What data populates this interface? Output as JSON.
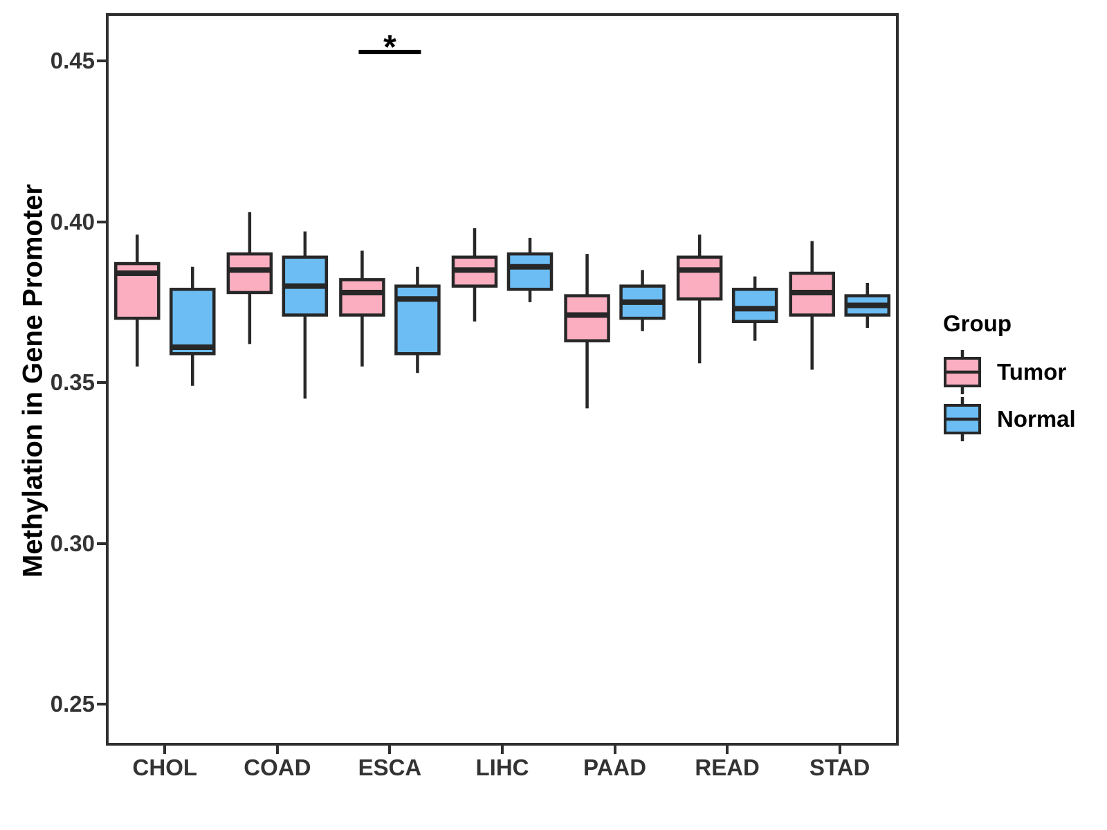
{
  "chart_data": {
    "type": "boxplot",
    "title": "",
    "xlabel": "",
    "ylabel": "Methylation in Gene Promoter",
    "legend_title": "Group",
    "legend_position": "right",
    "grid": false,
    "categories": [
      "CHOL",
      "COAD",
      "ESCA",
      "LIHC",
      "PAAD",
      "READ",
      "STAD"
    ],
    "ylim": [
      0.238,
      0.464
    ],
    "yticks": [
      {
        "value": 0.25,
        "label": "0.25"
      },
      {
        "value": 0.3,
        "label": "0.30"
      },
      {
        "value": 0.35,
        "label": "0.35"
      },
      {
        "value": 0.4,
        "label": "0.40"
      },
      {
        "value": 0.45,
        "label": "0.45"
      }
    ],
    "series": [
      {
        "name": "Tumor",
        "color": "#FAAEC0",
        "boxes": [
          {
            "category": "CHOL",
            "whisker_low": 0.355,
            "q1": 0.37,
            "median": 0.384,
            "q3": 0.387,
            "whisker_high": 0.396
          },
          {
            "category": "COAD",
            "whisker_low": 0.362,
            "q1": 0.378,
            "median": 0.385,
            "q3": 0.39,
            "whisker_high": 0.403
          },
          {
            "category": "ESCA",
            "whisker_low": 0.355,
            "q1": 0.371,
            "median": 0.378,
            "q3": 0.382,
            "whisker_high": 0.391
          },
          {
            "category": "LIHC",
            "whisker_low": 0.369,
            "q1": 0.38,
            "median": 0.385,
            "q3": 0.389,
            "whisker_high": 0.398
          },
          {
            "category": "PAAD",
            "whisker_low": 0.342,
            "q1": 0.363,
            "median": 0.371,
            "q3": 0.377,
            "whisker_high": 0.39
          },
          {
            "category": "READ",
            "whisker_low": 0.356,
            "q1": 0.376,
            "median": 0.385,
            "q3": 0.389,
            "whisker_high": 0.396
          },
          {
            "category": "STAD",
            "whisker_low": 0.354,
            "q1": 0.371,
            "median": 0.378,
            "q3": 0.384,
            "whisker_high": 0.394
          }
        ]
      },
      {
        "name": "Normal",
        "color": "#6CBDF3",
        "boxes": [
          {
            "category": "CHOL",
            "whisker_low": 0.349,
            "q1": 0.359,
            "median": 0.361,
            "q3": 0.379,
            "whisker_high": 0.386
          },
          {
            "category": "COAD",
            "whisker_low": 0.345,
            "q1": 0.371,
            "median": 0.38,
            "q3": 0.389,
            "whisker_high": 0.397
          },
          {
            "category": "ESCA",
            "whisker_low": 0.353,
            "q1": 0.359,
            "median": 0.376,
            "q3": 0.38,
            "whisker_high": 0.386
          },
          {
            "category": "LIHC",
            "whisker_low": 0.375,
            "q1": 0.379,
            "median": 0.386,
            "q3": 0.39,
            "whisker_high": 0.395
          },
          {
            "category": "PAAD",
            "whisker_low": 0.366,
            "q1": 0.37,
            "median": 0.375,
            "q3": 0.38,
            "whisker_high": 0.385
          },
          {
            "category": "READ",
            "whisker_low": 0.363,
            "q1": 0.369,
            "median": 0.373,
            "q3": 0.379,
            "whisker_high": 0.383
          },
          {
            "category": "STAD",
            "whisker_low": 0.367,
            "q1": 0.371,
            "median": 0.374,
            "q3": 0.377,
            "whisker_high": 0.381
          }
        ]
      }
    ],
    "significance": {
      "label": "*",
      "category": "ESCA",
      "between": [
        "Tumor",
        "Normal"
      ],
      "y": 0.4528
    },
    "colors": {
      "tumor": "#FAAEC0",
      "normal": "#6CBDF3",
      "box_stroke": "#272727",
      "panel_border": "#2f2f2f",
      "tick_label": "#333333",
      "annotation": "#000000"
    }
  }
}
